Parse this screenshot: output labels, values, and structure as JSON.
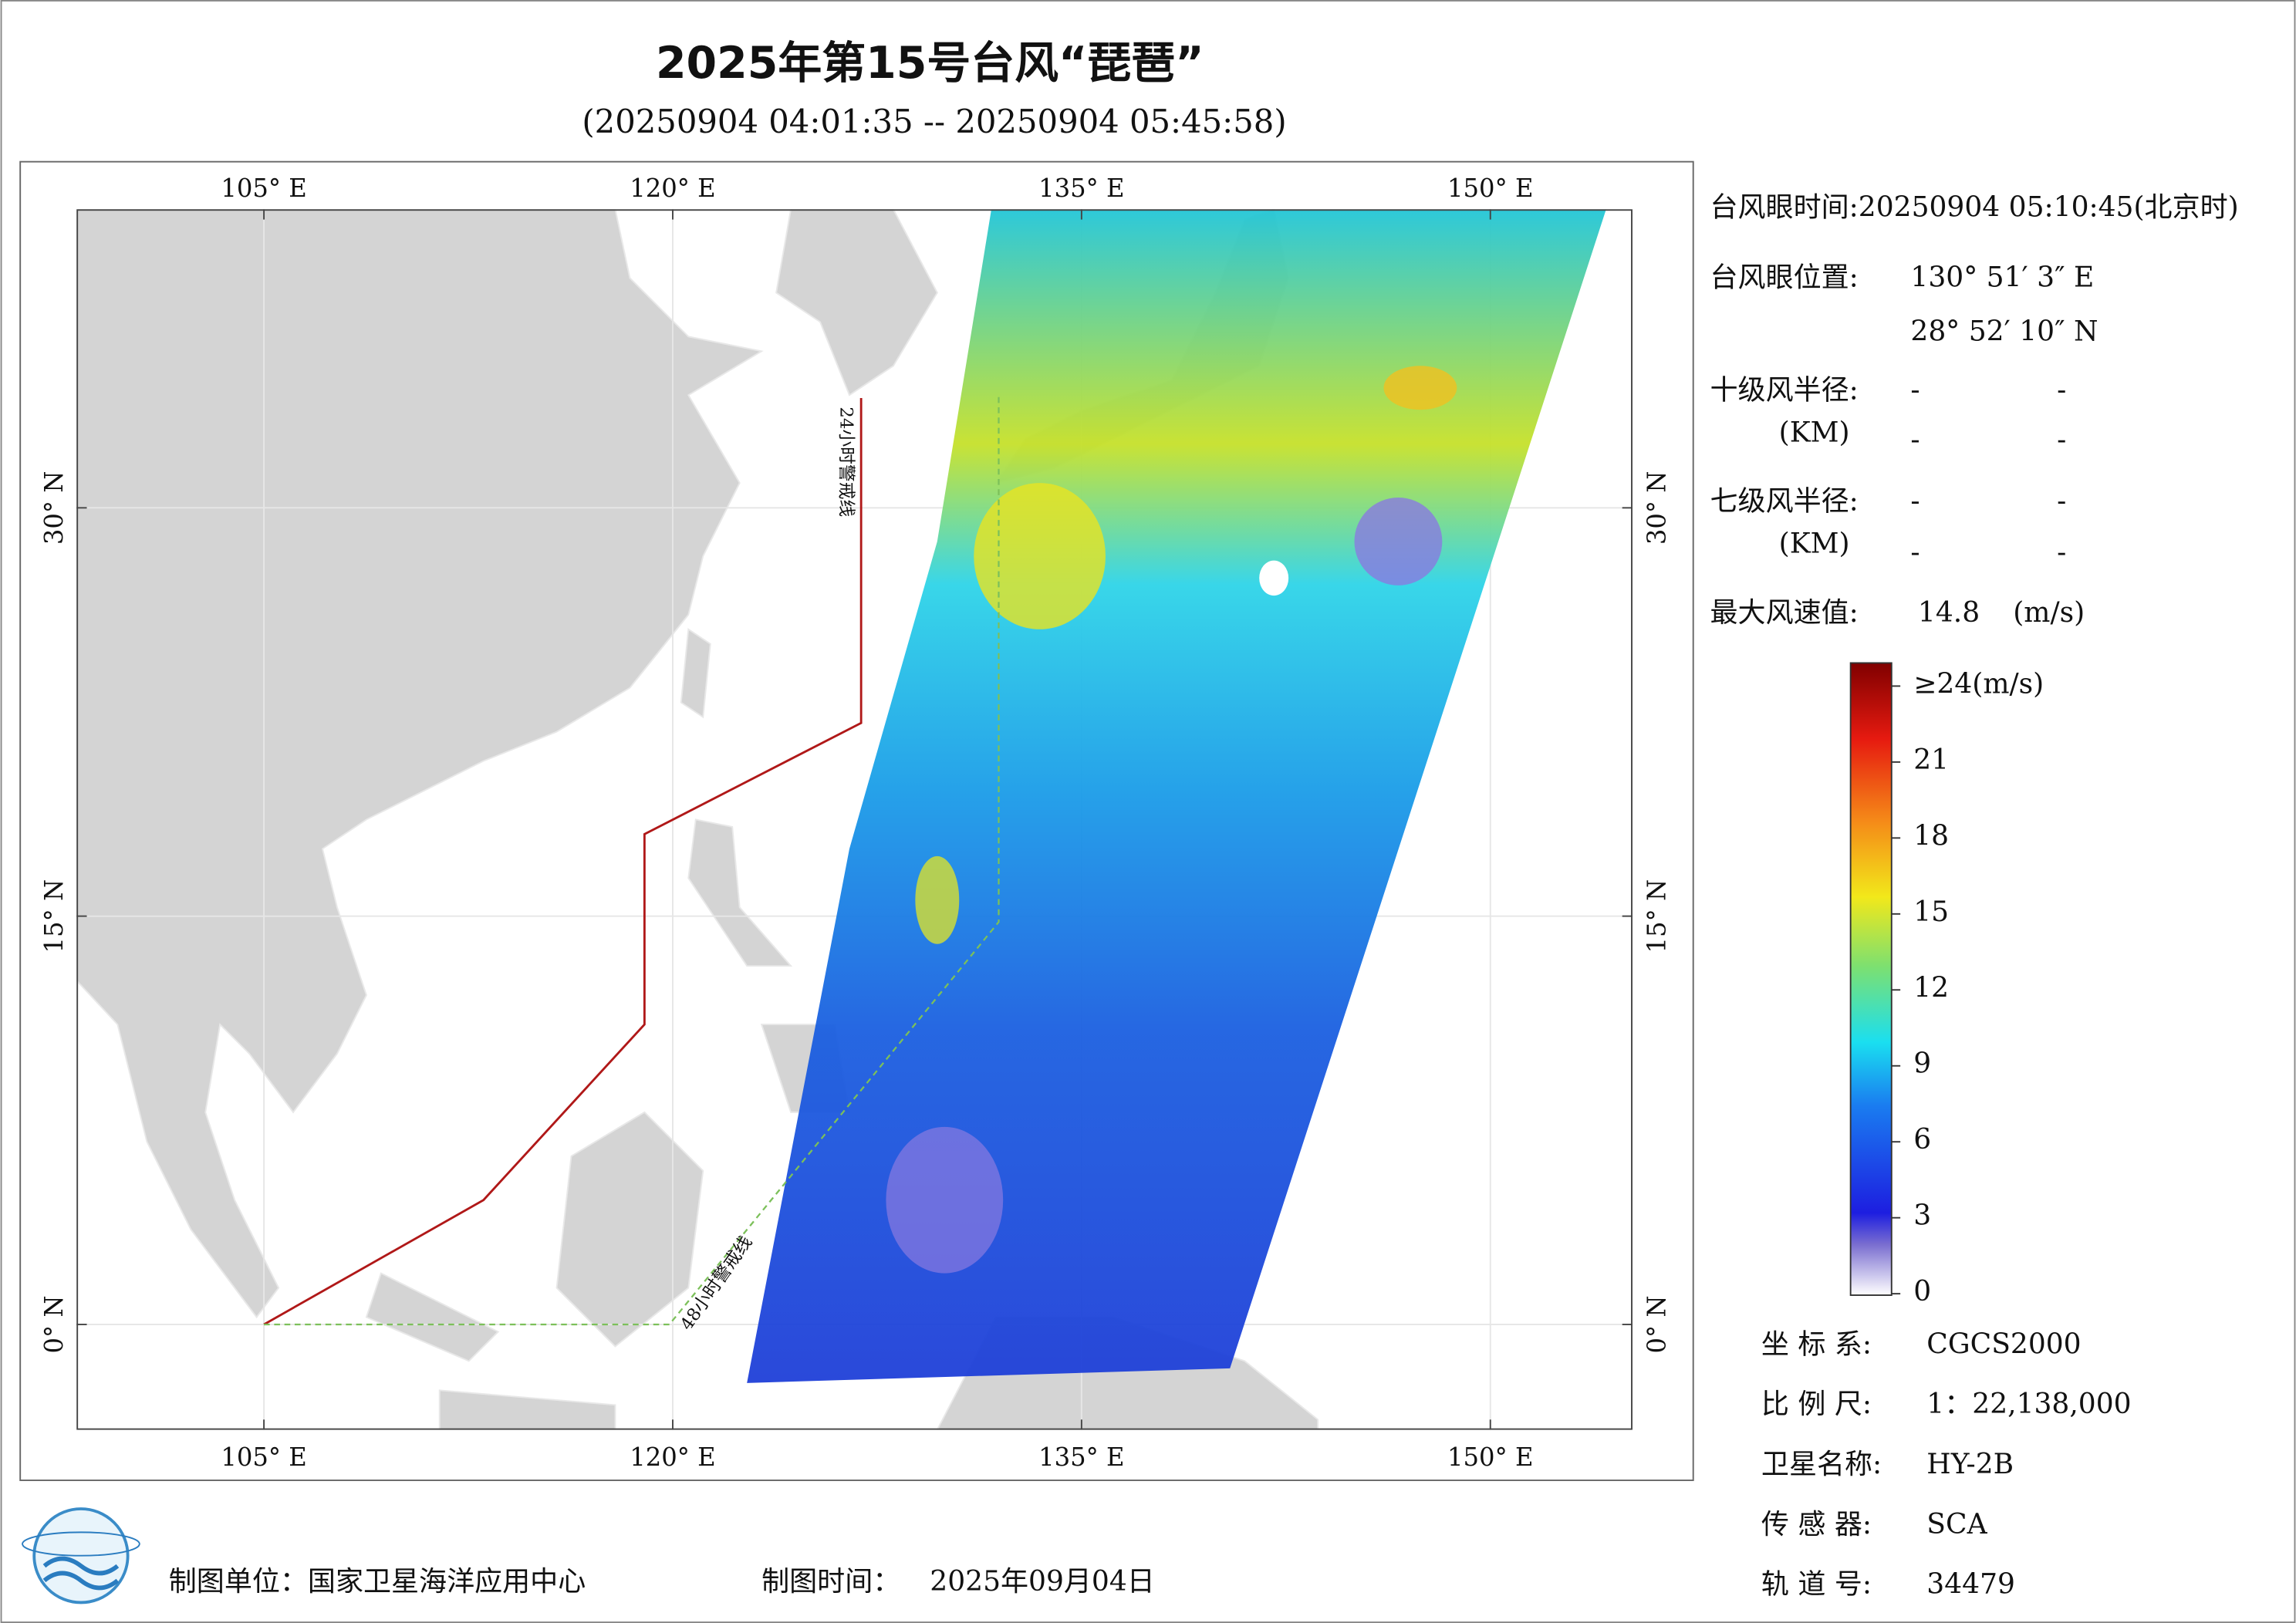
{
  "header": {
    "title": "2025年第15号台风“琵琶”",
    "subtitle": "(20250904 04:01:35 -- 20250904 05:45:58)"
  },
  "map": {
    "lon_ticks": [
      {
        "value": 105,
        "label": "105° E"
      },
      {
        "value": 120,
        "label": "120° E"
      },
      {
        "value": 135,
        "label": "135° E"
      },
      {
        "value": 150,
        "label": "150° E"
      }
    ],
    "lat_ticks": [
      {
        "value": 0,
        "label": "0° N"
      },
      {
        "value": 15,
        "label": "15° N"
      },
      {
        "value": 30,
        "label": "30° N"
      }
    ],
    "warning_lines": {
      "line_24h": "24小时警戒线",
      "line_48h": "48小时警戒线"
    }
  },
  "info": {
    "eye_time": "台风眼时间:20250904 05:10:45(北京时)",
    "eye_position_label": "台风眼位置:",
    "eye_lon": "130° 51′ 3″ E",
    "eye_lat": "28° 52′ 10″ N",
    "r10_label": "十级风半径:",
    "r10_unit": "(KM)",
    "r10_values": [
      "-",
      "-",
      "-",
      "-"
    ],
    "r7_label": "七级风半径:",
    "r7_unit": "(KM)",
    "r7_values": [
      "-",
      "-",
      "-",
      "-"
    ],
    "max_wind_label": "最大风速值:",
    "max_wind": 14.8,
    "max_wind_unit": "(m/s)"
  },
  "colorbar": {
    "ticks": [
      0,
      3,
      6,
      9,
      12,
      15,
      18,
      21,
      {
        "value": 24,
        "label": "≥24(m/s)"
      }
    ]
  },
  "meta": [
    {
      "label": "坐 标 系:",
      "value": "CGCS2000"
    },
    {
      "label": "比 例 尺:",
      "value": "1：22,138,000"
    },
    {
      "label": "卫星名称:",
      "value": "HY-2B"
    },
    {
      "label": "传 感 器:",
      "value": "SCA"
    },
    {
      "label": "轨 道 号:",
      "value": "34479"
    }
  ],
  "footer": {
    "producer": "制图单位：国家卫星海洋应用中心",
    "date_label": "制图时间：",
    "date": "2025年09月04日"
  }
}
